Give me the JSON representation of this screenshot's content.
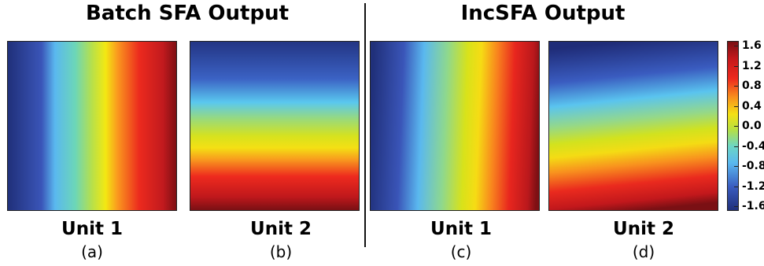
{
  "headings": {
    "left": "Batch SFA Output",
    "right": "IncSFA Output"
  },
  "chart_data": {
    "type": "heatmap",
    "colormap": "jet",
    "colorbar": {
      "range": [
        -1.6,
        1.6
      ],
      "ticks": [
        "1.6",
        "1.2",
        "0.8",
        "0.4",
        "0.0",
        "-0.4",
        "-0.8",
        "-1.2",
        "-1.6"
      ]
    },
    "panels": [
      {
        "unit": "Unit 1",
        "label": "(a)",
        "gradient": "horizontal, low at left to high at right"
      },
      {
        "unit": "Unit 2",
        "label": "(b)",
        "gradient": "vertical, low at top to high at bottom"
      },
      {
        "unit": "Unit 1",
        "label": "(c)",
        "gradient": "horizontal, low at left to high at right, slightly tilted"
      },
      {
        "unit": "Unit 2",
        "label": "(d)",
        "gradient": "vertical, low at top to high at bottom, slightly tilted"
      }
    ]
  }
}
